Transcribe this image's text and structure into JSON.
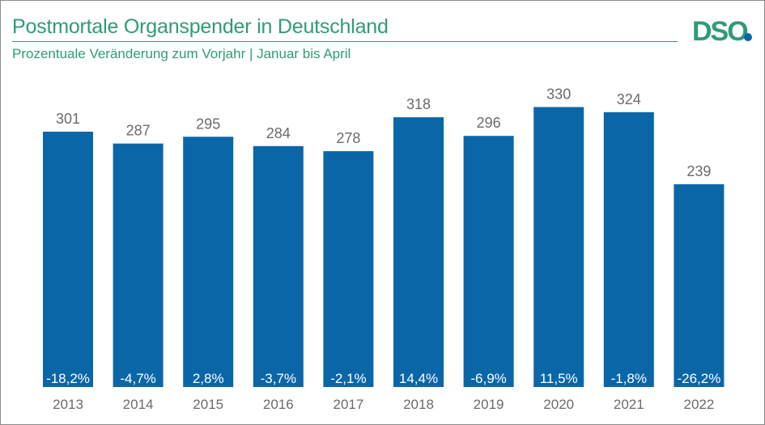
{
  "header": {
    "title": "Postmortale Organspender in Deutschland",
    "subtitle": "Prozentuale Veränderung zum Vorjahr | Januar bis April",
    "logo_text": "DSO"
  },
  "colors": {
    "accent": "#2e9b78",
    "bar": "#0b66a8",
    "logo_green": "#2e9b78",
    "logo_blue": "#0b66a8",
    "value_label": "#6b6b6b",
    "axis_label": "#6b6b6b"
  },
  "chart_data": {
    "type": "bar",
    "title": "Postmortale Organspender in Deutschland",
    "subtitle": "Prozentuale Veränderung zum Vorjahr | Januar bis April",
    "xlabel": "",
    "ylabel": "",
    "ylim": [
      0,
      360
    ],
    "grid": false,
    "categories": [
      "2013",
      "2014",
      "2015",
      "2016",
      "2017",
      "2018",
      "2019",
      "2020",
      "2021",
      "2022"
    ],
    "values": [
      301,
      287,
      295,
      284,
      278,
      318,
      296,
      330,
      324,
      239
    ],
    "value_labels": [
      "301",
      "287",
      "295",
      "284",
      "278",
      "318",
      "296",
      "330",
      "324",
      "239"
    ],
    "change_labels": [
      "-18,2%",
      "-4,7%",
      "2,8%",
      "-3,7%",
      "-2,1%",
      "14,4%",
      "-6,9%",
      "11,5%",
      "-1,8%",
      "-26,2%"
    ]
  }
}
